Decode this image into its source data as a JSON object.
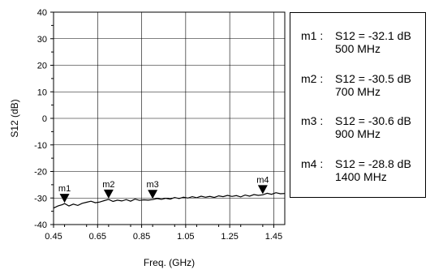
{
  "chart_data": {
    "type": "line",
    "xlabel": "Freq. (GHz)",
    "ylabel": "S12 (dB)",
    "xlim": [
      0.45,
      1.5
    ],
    "ylim": [
      -40,
      40
    ],
    "xticks": [
      "0.45",
      "0.65",
      "0.85",
      "1.05",
      "1.25",
      "1.45"
    ],
    "xtick_values": [
      0.45,
      0.65,
      0.85,
      1.05,
      1.25,
      1.45
    ],
    "yticks": [
      "40",
      "30",
      "20",
      "10",
      "0",
      "-10",
      "-20",
      "-30",
      "-40"
    ],
    "ytick_values": [
      40,
      30,
      20,
      10,
      0,
      -10,
      -20,
      -30,
      -40
    ],
    "grid": true,
    "series": [
      {
        "x": [
          0.45,
          0.47,
          0.49,
          0.5,
          0.52,
          0.54,
          0.56,
          0.58,
          0.6,
          0.62,
          0.64,
          0.66,
          0.68,
          0.7,
          0.72,
          0.74,
          0.76,
          0.78,
          0.8,
          0.82,
          0.84,
          0.86,
          0.88,
          0.9,
          0.92,
          0.94,
          0.96,
          0.98,
          1.0,
          1.02,
          1.04,
          1.06,
          1.08,
          1.1,
          1.12,
          1.14,
          1.16,
          1.18,
          1.2,
          1.22,
          1.24,
          1.26,
          1.28,
          1.3,
          1.32,
          1.34,
          1.36,
          1.38,
          1.4,
          1.42,
          1.44,
          1.46,
          1.48,
          1.5
        ],
        "y": [
          -33.8,
          -33.0,
          -32.5,
          -32.1,
          -33.0,
          -32.3,
          -32.8,
          -32.0,
          -31.6,
          -31.2,
          -31.8,
          -31.5,
          -31.0,
          -30.5,
          -31.3,
          -30.8,
          -31.1,
          -30.6,
          -31.2,
          -30.4,
          -30.9,
          -30.7,
          -30.8,
          -30.6,
          -30.2,
          -30.5,
          -30.1,
          -30.4,
          -29.8,
          -30.2,
          -29.7,
          -30.0,
          -29.5,
          -29.9,
          -29.3,
          -29.7,
          -29.4,
          -29.8,
          -29.2,
          -29.5,
          -29.0,
          -29.4,
          -29.1,
          -29.6,
          -28.9,
          -29.3,
          -28.7,
          -29.0,
          -28.8,
          -28.2,
          -28.6,
          -28.0,
          -28.4,
          -28.3
        ]
      }
    ],
    "markers": [
      {
        "name": "m1",
        "x": 0.5,
        "y": -32.1
      },
      {
        "name": "m2",
        "x": 0.7,
        "y": -30.5
      },
      {
        "name": "m3",
        "x": 0.9,
        "y": -30.6
      },
      {
        "name": "m4",
        "x": 1.4,
        "y": -28.8
      }
    ]
  },
  "legend": {
    "entries": [
      {
        "label": "m1 :",
        "value": "S12 = -32.1 dB",
        "freq": "500 MHz"
      },
      {
        "label": "m2 :",
        "value": "S12 = -30.5 dB",
        "freq": "700 MHz"
      },
      {
        "label": "m3 :",
        "value": "S12 = -30.6 dB",
        "freq": "900 MHz"
      },
      {
        "label": "m4 :",
        "value": "S12 = -28.8 dB",
        "freq": "1400 MHz"
      }
    ]
  }
}
